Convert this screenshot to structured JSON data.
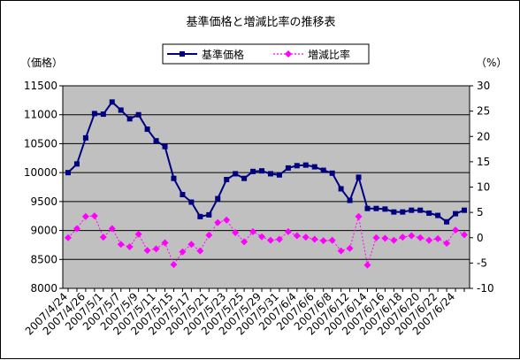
{
  "chart_data": {
    "type": "line",
    "title": "基準価格と増減比率の推移表",
    "ylabel_left": "（価格）",
    "ylabel_right": "（%）",
    "colors": {
      "plot_bg": "#c0c0c0",
      "price": "#000080",
      "ratio": "#ff00ff",
      "grid": "#000000"
    },
    "y_left": {
      "min": 8000,
      "max": 11500,
      "step": 500,
      "ticks": [
        "8000",
        "8500",
        "9000",
        "9500",
        "10000",
        "10500",
        "11000",
        "11500"
      ]
    },
    "y_right": {
      "min": -10,
      "max": 30,
      "step": 5,
      "ticks": [
        "-10",
        "-5",
        "0",
        "5",
        "10",
        "15",
        "20",
        "25",
        "30"
      ]
    },
    "x_tick_labels": [
      "2007/4/24",
      "2007/4/26",
      "2007/5/1",
      "2007/5/7",
      "2007/5/9",
      "2007/5/11",
      "2007/5/15",
      "2007/5/17",
      "2007/5/21",
      "2007/5/23",
      "2007/5/25",
      "2007/5/29",
      "2007/5/31",
      "2007/6/4",
      "2007/6/6",
      "2007/6/8",
      "2007/6/12",
      "2007/6/14",
      "2007/6/16",
      "2007/6/18",
      "2007/6/20",
      "2007/6/22",
      "2007/6/24"
    ],
    "series": [
      {
        "name": "基準価格",
        "axis": "left",
        "values": [
          10000,
          10150,
          10600,
          11020,
          11010,
          11220,
          11080,
          10930,
          11000,
          10750,
          10550,
          10450,
          9900,
          9620,
          9490,
          9240,
          9270,
          9550,
          9880,
          9980,
          9900,
          10020,
          10030,
          9980,
          9960,
          10080,
          10120,
          10130,
          10100,
          10040,
          9990,
          9720,
          9520,
          9920,
          9380,
          9380,
          9370,
          9320,
          9320,
          9350,
          9350,
          9300,
          9260,
          9150,
          9290,
          9350
        ]
      },
      {
        "name": "増減比率",
        "axis": "right",
        "values": [
          0.0,
          1.8,
          4.2,
          4.3,
          0.1,
          1.8,
          -1.3,
          -1.8,
          0.7,
          -2.5,
          -2.2,
          -1.0,
          -5.3,
          -2.8,
          -1.3,
          -2.6,
          0.5,
          3.0,
          3.5,
          1.0,
          -0.8,
          1.2,
          0.2,
          -0.5,
          -0.3,
          1.2,
          0.4,
          0.1,
          -0.3,
          -0.6,
          -0.5,
          -2.6,
          -2.1,
          4.2,
          -5.4,
          0.0,
          -0.1,
          -0.5,
          0.1,
          0.4,
          0.0,
          -0.5,
          -0.2,
          -1.1,
          1.5,
          0.6
        ]
      }
    ],
    "legend": {
      "position": "top-center",
      "box_fill": "#ffffff"
    }
  }
}
